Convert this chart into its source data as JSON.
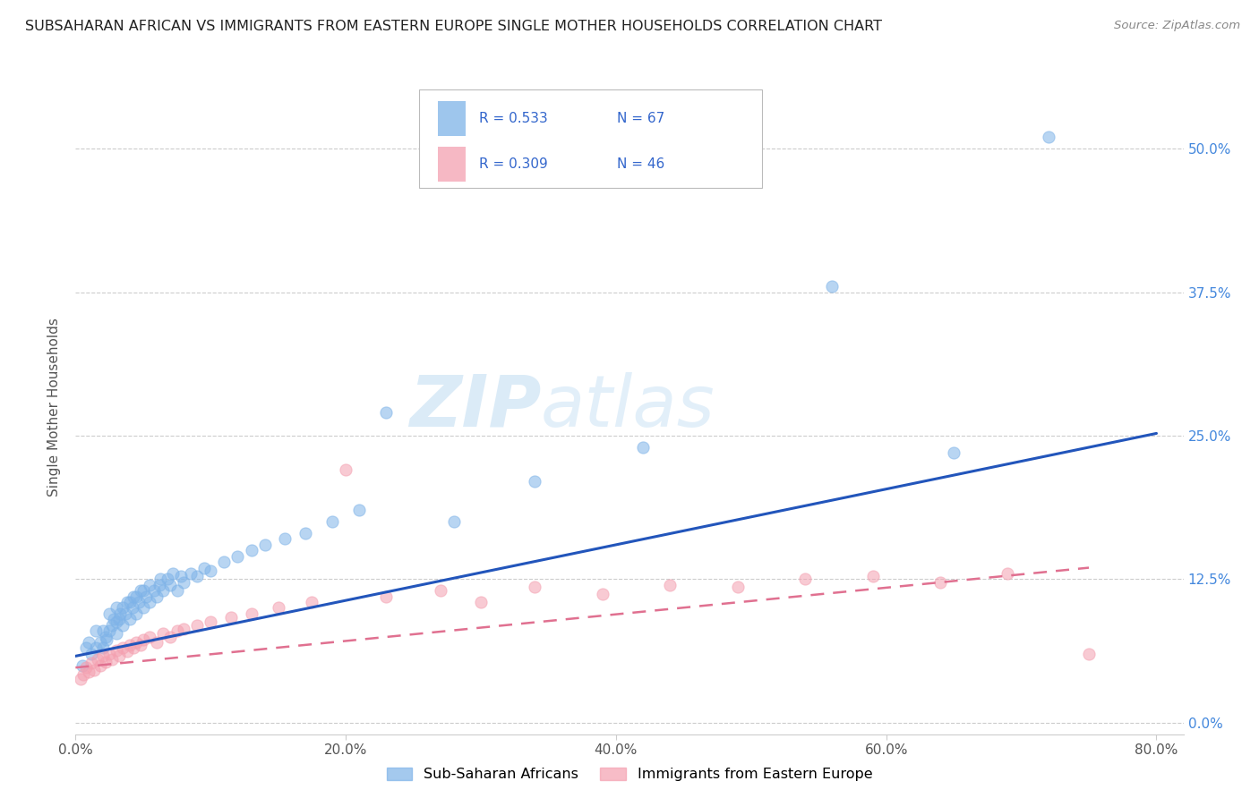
{
  "title": "SUBSAHARAN AFRICAN VS IMMIGRANTS FROM EASTERN EUROPE SINGLE MOTHER HOUSEHOLDS CORRELATION CHART",
  "source": "Source: ZipAtlas.com",
  "ylabel": "Single Mother Households",
  "xlabel_ticks": [
    "0.0%",
    "20.0%",
    "40.0%",
    "60.0%",
    "80.0%"
  ],
  "ytick_vals": [
    0.0,
    0.125,
    0.25,
    0.375,
    0.5
  ],
  "ylabel_ticks": [
    "0.0%",
    "12.5%",
    "25.0%",
    "37.5%",
    "50.0%"
  ],
  "xlim": [
    0.0,
    0.82
  ],
  "ylim": [
    -0.01,
    0.56
  ],
  "blue_color": "#7EB3E8",
  "pink_color": "#F4A0B0",
  "blue_line_color": "#2255BB",
  "pink_line_color": "#E07090",
  "watermark1": "ZIP",
  "watermark2": "atlas",
  "legend_R_blue": "R = 0.533",
  "legend_N_blue": "N = 67",
  "legend_R_pink": "R = 0.309",
  "legend_N_pink": "N = 46",
  "blue_scatter_x": [
    0.005,
    0.008,
    0.01,
    0.012,
    0.015,
    0.015,
    0.018,
    0.02,
    0.02,
    0.022,
    0.023,
    0.025,
    0.025,
    0.027,
    0.028,
    0.03,
    0.03,
    0.03,
    0.032,
    0.033,
    0.035,
    0.035,
    0.037,
    0.038,
    0.04,
    0.04,
    0.042,
    0.043,
    0.045,
    0.045,
    0.047,
    0.048,
    0.05,
    0.05,
    0.052,
    0.055,
    0.055,
    0.058,
    0.06,
    0.062,
    0.063,
    0.065,
    0.068,
    0.07,
    0.072,
    0.075,
    0.078,
    0.08,
    0.085,
    0.09,
    0.095,
    0.1,
    0.11,
    0.12,
    0.13,
    0.14,
    0.155,
    0.17,
    0.19,
    0.21,
    0.23,
    0.28,
    0.34,
    0.42,
    0.56,
    0.65,
    0.72
  ],
  "blue_scatter_y": [
    0.05,
    0.065,
    0.07,
    0.06,
    0.065,
    0.08,
    0.07,
    0.065,
    0.08,
    0.075,
    0.072,
    0.08,
    0.095,
    0.085,
    0.09,
    0.078,
    0.088,
    0.1,
    0.09,
    0.095,
    0.085,
    0.1,
    0.095,
    0.105,
    0.09,
    0.105,
    0.1,
    0.11,
    0.095,
    0.11,
    0.105,
    0.115,
    0.1,
    0.115,
    0.11,
    0.105,
    0.12,
    0.115,
    0.11,
    0.12,
    0.125,
    0.115,
    0.125,
    0.12,
    0.13,
    0.115,
    0.128,
    0.122,
    0.13,
    0.128,
    0.135,
    0.132,
    0.14,
    0.145,
    0.15,
    0.155,
    0.16,
    0.165,
    0.175,
    0.185,
    0.27,
    0.175,
    0.21,
    0.24,
    0.38,
    0.235,
    0.51
  ],
  "pink_scatter_x": [
    0.004,
    0.006,
    0.008,
    0.01,
    0.012,
    0.014,
    0.016,
    0.018,
    0.02,
    0.022,
    0.025,
    0.027,
    0.03,
    0.032,
    0.035,
    0.038,
    0.04,
    0.043,
    0.045,
    0.048,
    0.05,
    0.055,
    0.06,
    0.065,
    0.07,
    0.075,
    0.08,
    0.09,
    0.1,
    0.115,
    0.13,
    0.15,
    0.175,
    0.2,
    0.23,
    0.27,
    0.3,
    0.34,
    0.39,
    0.44,
    0.49,
    0.54,
    0.59,
    0.64,
    0.69,
    0.75
  ],
  "pink_scatter_y": [
    0.038,
    0.042,
    0.048,
    0.044,
    0.052,
    0.046,
    0.055,
    0.05,
    0.058,
    0.053,
    0.06,
    0.055,
    0.063,
    0.058,
    0.065,
    0.062,
    0.068,
    0.065,
    0.07,
    0.068,
    0.072,
    0.075,
    0.07,
    0.078,
    0.075,
    0.08,
    0.082,
    0.085,
    0.088,
    0.092,
    0.095,
    0.1,
    0.105,
    0.22,
    0.11,
    0.115,
    0.105,
    0.118,
    0.112,
    0.12,
    0.118,
    0.125,
    0.128,
    0.122,
    0.13,
    0.06
  ],
  "blue_trend_x": [
    0.0,
    0.8
  ],
  "blue_trend_y": [
    0.058,
    0.252
  ],
  "pink_trend_x": [
    0.0,
    0.75
  ],
  "pink_trend_y": [
    0.048,
    0.135
  ],
  "grid_color": "#CCCCCC",
  "background_color": "#FFFFFF",
  "tick_color": "#4488DD"
}
